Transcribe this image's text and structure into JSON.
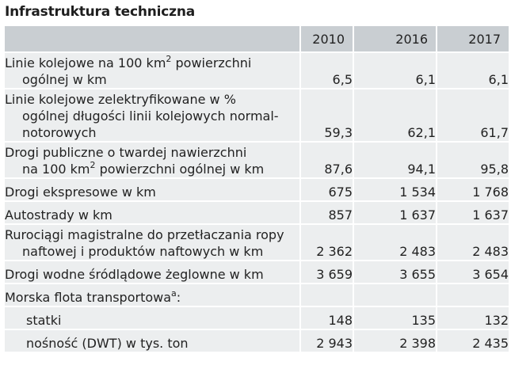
{
  "title": "Infrastruktura techniczna",
  "columns": [
    "2010",
    "2016",
    "2017"
  ],
  "rows": [
    {
      "line1": "Linie kolejowe na 100 km",
      "sup": "2",
      "line1_tail": " powierzchni",
      "line2": "ogólnej w km",
      "values": [
        "6,5",
        "6,1",
        "6,1"
      ]
    },
    {
      "line1": "Linie kolejowe zelektryfikowane w %",
      "line2": "ogólnej długości linii kolejowych normal-",
      "line3": "notorowych",
      "values": [
        "59,3",
        "62,1",
        "61,7"
      ]
    },
    {
      "line1": "Drogi publiczne o twardej nawierzchni",
      "line2": "na 100 km",
      "sup": "2",
      "line2_tail": " powierzchni ogólnej w km",
      "values": [
        "87,6",
        "94,1",
        "95,8"
      ]
    },
    {
      "label": "Drogi ekspresowe w km",
      "values": [
        "675",
        "1 534",
        "1 768"
      ]
    },
    {
      "label": "Autostrady w km",
      "values": [
        "857",
        "1 637",
        "1 637"
      ]
    },
    {
      "line1": "Rurociągi magistralne do przetłaczania ropy",
      "line2": "naftowej i produktów naftowych w km",
      "values": [
        "2 362",
        "2 483",
        "2 483"
      ]
    },
    {
      "label": "Drogi wodne śródlądowe żeglowne w km",
      "values": [
        "3 659",
        "3 655",
        "3 654"
      ]
    },
    {
      "label": "Morska flota transportowa",
      "sup": "a",
      "label_tail": ":",
      "values": [
        "",
        "",
        ""
      ]
    },
    {
      "label": "statki",
      "values": [
        "148",
        "135",
        "132"
      ]
    },
    {
      "label": "nośność (DWT) w tys. ton",
      "values": [
        "2 943",
        "2 398",
        "2 435"
      ]
    }
  ]
}
